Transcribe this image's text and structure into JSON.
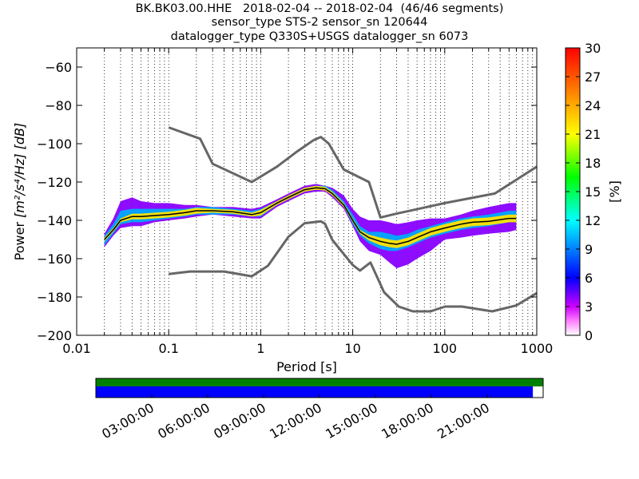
{
  "header": {
    "line1": "BK.BK03.00.HHE   2018-02-04 -- 2018-02-04  (46/46 segments)",
    "line2": "sensor_type STS-2 sensor_sn 120644",
    "line3": "datalogger_type Q330S+USGS datalogger_sn 6073"
  },
  "chart_data": {
    "type": "heatmap",
    "xlabel": "Period [s]",
    "ylabel_prefix": "Power ",
    "ylabel_units": "[m²/s⁴/Hz] [dB]",
    "x_scale": "log",
    "xlim": [
      0.01,
      1000
    ],
    "ylim": [
      -200,
      -50
    ],
    "x_ticks": [
      0.01,
      0.1,
      1,
      10,
      100,
      1000
    ],
    "x_tick_labels": [
      "0.01",
      "0.1",
      "1",
      "10",
      "100",
      "1000"
    ],
    "y_ticks": [
      -200,
      -180,
      -160,
      -140,
      -120,
      -100,
      -80,
      -60
    ],
    "y_tick_labels": [
      "−200",
      "−180",
      "−160",
      "−140",
      "−120",
      "−100",
      "−80",
      "−60"
    ],
    "grid": "dotted-vertical",
    "colorbar": {
      "label": "[%]",
      "min": 0,
      "max": 30,
      "ticks": [
        0,
        3,
        6,
        9,
        12,
        15,
        18,
        21,
        24,
        27,
        30
      ],
      "tick_labels": [
        "0",
        "3",
        "6",
        "9",
        "12",
        "15",
        "18",
        "21",
        "24",
        "27",
        "30"
      ]
    },
    "noise_model_high": {
      "period": [
        0.1,
        0.22,
        0.3,
        0.8,
        1.5,
        2.5,
        3.8,
        4.5,
        5.5,
        8,
        15,
        20,
        30,
        100,
        350,
        1000
      ],
      "power": [
        -91.5,
        -97.4,
        -110.5,
        -120,
        -112,
        -104,
        -98,
        -96.5,
        -100,
        -113.5,
        -120,
        -138.5,
        -136.5,
        -131,
        -126,
        -112
      ]
    },
    "noise_model_low": {
      "period": [
        0.1,
        0.17,
        0.4,
        0.8,
        1.2,
        2,
        3,
        4.5,
        5,
        6,
        10,
        12,
        15.6,
        21.9,
        31.6,
        45,
        70,
        101,
        154,
        328,
        600,
        1000
      ],
      "power": [
        -168,
        -166.7,
        -166.7,
        -169.2,
        -163.7,
        -148.6,
        -141.5,
        -140.5,
        -141.8,
        -150.2,
        -163.3,
        -166.2,
        -162,
        -177.5,
        -185,
        -187.5,
        -187.5,
        -185,
        -185,
        -187.5,
        -184.4,
        -178
      ]
    },
    "mode_curve": {
      "period": [
        0.02,
        0.025,
        0.03,
        0.04,
        0.05,
        0.07,
        0.1,
        0.15,
        0.2,
        0.3,
        0.5,
        0.8,
        1,
        1.5,
        2,
        3,
        4,
        5,
        6,
        8,
        10,
        12,
        15,
        20,
        25,
        30,
        40,
        50,
        70,
        100,
        150,
        200,
        300,
        500,
        600
      ],
      "power": [
        -150,
        -145,
        -140,
        -138,
        -138,
        -137.5,
        -137,
        -136,
        -135,
        -135,
        -135.5,
        -137,
        -136,
        -131,
        -128,
        -124,
        -123,
        -123.5,
        -126,
        -132,
        -140,
        -146,
        -149,
        -151,
        -152,
        -152.5,
        -151,
        -149,
        -146,
        -144,
        -142,
        -141,
        -140.5,
        -139,
        -139
      ]
    },
    "density_bands": [
      {
        "period": [
          0.02,
          0.025,
          0.03,
          0.04,
          0.05,
          0.07,
          0.1,
          0.15,
          0.2,
          0.3,
          0.5,
          0.8,
          1,
          1.5,
          2,
          3,
          4,
          5,
          6,
          8,
          10,
          12,
          15,
          20,
          25,
          30,
          40,
          50,
          70,
          100,
          150,
          200,
          300,
          500,
          600
        ],
        "low": [
          -154,
          -148,
          -144,
          -143,
          -143,
          -141,
          -140,
          -139,
          -138,
          -137,
          -138,
          -139,
          -139,
          -133,
          -130,
          -126,
          -125,
          -125,
          -128,
          -134,
          -143,
          -151,
          -156,
          -158,
          -162,
          -165,
          -163,
          -160,
          -156,
          -150,
          -149,
          -148,
          -147,
          -146,
          -145
        ],
        "high": [
          -147,
          -139,
          -130,
          -128,
          -130,
          -131,
          -131,
          -132,
          -132,
          -133,
          -133,
          -134,
          -133,
          -129,
          -126,
          -122,
          -121,
          -122,
          -123,
          -127,
          -134,
          -138,
          -140,
          -140,
          -141,
          -142,
          -141,
          -140,
          -139,
          -139,
          -137,
          -135,
          -133,
          -131,
          -131
        ],
        "percent": 4
      },
      {
        "period": [
          0.02,
          0.025,
          0.03,
          0.04,
          0.05,
          0.07,
          0.1,
          0.15,
          0.2,
          0.3,
          0.5,
          0.8,
          1,
          1.5,
          2,
          3,
          4,
          5,
          6,
          8,
          10,
          12,
          15,
          20,
          25,
          30,
          40,
          50,
          70,
          100,
          150,
          200,
          300,
          500,
          600
        ],
        "low": [
          -153,
          -147,
          -142,
          -141,
          -141,
          -140,
          -139,
          -138,
          -137,
          -137,
          -137,
          -138,
          -138,
          -132,
          -129,
          -125,
          -124,
          -124,
          -127,
          -133,
          -142,
          -148,
          -152,
          -155,
          -156,
          -156,
          -154,
          -152,
          -149,
          -147,
          -145,
          -144,
          -143,
          -141,
          -141
        ],
        "high": [
          -148,
          -142,
          -135,
          -134,
          -134,
          -134,
          -134,
          -134,
          -133,
          -133,
          -134,
          -135,
          -134,
          -130,
          -127,
          -123,
          -122,
          -122,
          -124,
          -130,
          -137,
          -143,
          -146,
          -146,
          -147,
          -148,
          -147,
          -145,
          -143,
          -141,
          -139,
          -138,
          -137,
          -135,
          -135
        ],
        "percent": 10
      },
      {
        "period": [
          0.02,
          0.025,
          0.03,
          0.04,
          0.05,
          0.07,
          0.1,
          0.15,
          0.2,
          0.3,
          0.5,
          0.8,
          1,
          1.5,
          2,
          3,
          4,
          5,
          6,
          8,
          10,
          12,
          15,
          20,
          25,
          30,
          40,
          50,
          70,
          100,
          150,
          200,
          300,
          500,
          600
        ],
        "low": [
          -151,
          -146,
          -141,
          -139.5,
          -139.5,
          -139,
          -138.5,
          -137.5,
          -136.5,
          -136,
          -136.5,
          -138,
          -137.5,
          -132,
          -129,
          -125,
          -124,
          -124.5,
          -127,
          -133,
          -141,
          -147,
          -150.5,
          -153,
          -154,
          -154.5,
          -153,
          -151,
          -148,
          -146,
          -144,
          -143,
          -142.5,
          -141,
          -141
        ],
        "high": [
          -149,
          -144,
          -139,
          -136.5,
          -136.5,
          -136,
          -135.5,
          -134.5,
          -133.5,
          -134,
          -134.5,
          -136,
          -134.5,
          -130,
          -127,
          -123,
          -122,
          -122.5,
          -125,
          -131,
          -139,
          -145,
          -147.5,
          -149,
          -150,
          -150.5,
          -149,
          -147,
          -144,
          -142,
          -140,
          -139,
          -138.5,
          -137,
          -137
        ],
        "percent": 22
      }
    ],
    "availability": {
      "x_tick_labels": [
        "03:00:00",
        "06:00:00",
        "09:00:00",
        "12:00:00",
        "15:00:00",
        "18:00:00",
        "21:00:00"
      ],
      "x_tick_hours": [
        3,
        6,
        9,
        12,
        15,
        18,
        21
      ],
      "start_hour": 0,
      "end_hour": 24,
      "data_fraction": 0.977
    },
    "colors": {
      "noise_model": "#666666",
      "mode": "#000000",
      "data_available": "#008000",
      "segments_used": "#0000ff"
    }
  }
}
